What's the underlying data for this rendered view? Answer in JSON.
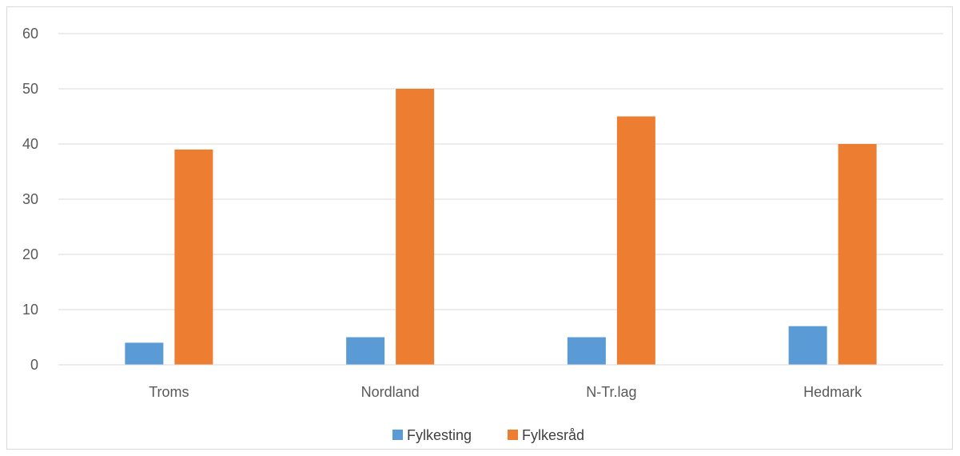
{
  "chart_data": {
    "type": "bar",
    "title": "",
    "xlabel": "",
    "ylabel": "",
    "categories": [
      "Troms",
      "Nordland",
      "N-Tr.lag",
      "Hedmark"
    ],
    "series": [
      {
        "name": "Fylkesting",
        "values": [
          4,
          5,
          5,
          7
        ],
        "color": "#5b9bd5"
      },
      {
        "name": "Fylkesråd",
        "values": [
          39,
          50,
          45,
          40
        ],
        "color": "#ed7d31"
      }
    ],
    "ylim": [
      0,
      60
    ],
    "yticks": [
      0,
      10,
      20,
      30,
      40,
      50,
      60
    ],
    "grid": true,
    "legend_position": "bottom",
    "gridline_color": "#d9d9d9"
  }
}
